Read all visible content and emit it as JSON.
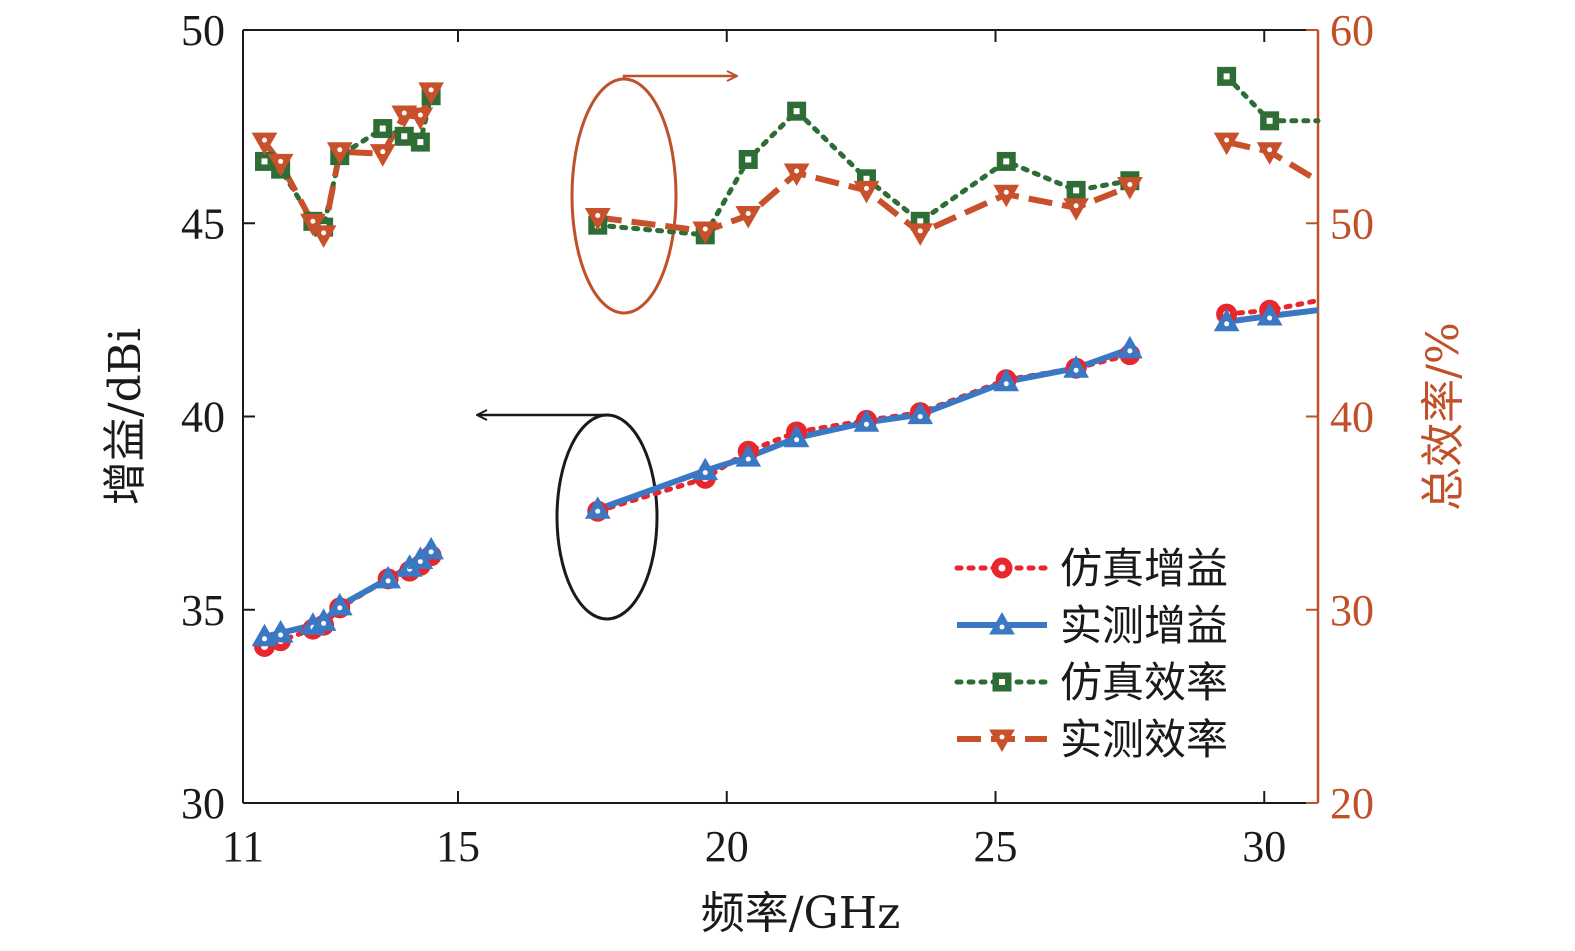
{
  "chart_data": {
    "type": "line",
    "xlabel": "频率/GHz",
    "ylabel_left": "增益/dBi",
    "ylabel_right": "总效率/%",
    "xlim": [
      11,
      31
    ],
    "ylim_left": [
      30,
      50
    ],
    "ylim_right": [
      20,
      60
    ],
    "xticks": [
      11,
      15,
      20,
      25,
      30
    ],
    "yticks_left": [
      30,
      35,
      40,
      45,
      50
    ],
    "yticks_right": [
      20,
      30,
      40,
      50,
      60
    ],
    "grid": false,
    "legend_position": "bottom-right",
    "colors": {
      "axis_left": "#1a1a1a",
      "axis_right": "#c0502a",
      "sim_gain": "#e8262d",
      "meas_gain": "#3a78c4",
      "sim_eff": "#2e6e36",
      "meas_eff": "#c8502a",
      "ellipse_right": "#c0502a",
      "ellipse_left": "#1a1a1a"
    },
    "series": [
      {
        "name": "仿真增益",
        "axis": "left",
        "segments": [
          [
            [
              11.4,
              34.05
            ],
            [
              11.7,
              34.2
            ],
            [
              12.3,
              34.5
            ],
            [
              12.5,
              34.6
            ],
            [
              12.8,
              35.05
            ],
            [
              13.7,
              35.8
            ],
            [
              14.1,
              36.0
            ],
            [
              14.3,
              36.15
            ],
            [
              14.5,
              36.4
            ]
          ],
          [
            [
              17.6,
              37.55
            ],
            [
              19.6,
              38.4
            ],
            [
              20.4,
              39.1
            ],
            [
              21.3,
              39.6
            ],
            [
              22.6,
              39.9
            ],
            [
              23.6,
              40.1
            ],
            [
              25.2,
              40.95
            ],
            [
              26.5,
              41.25
            ],
            [
              27.5,
              41.6
            ]
          ],
          [
            [
              29.3,
              42.65
            ],
            [
              30.1,
              42.75
            ],
            [
              31.0,
              43.0
            ]
          ]
        ]
      },
      {
        "name": "实测增益",
        "axis": "left",
        "segments": [
          [
            [
              11.4,
              34.3
            ],
            [
              11.7,
              34.4
            ],
            [
              12.3,
              34.6
            ],
            [
              12.5,
              34.7
            ],
            [
              12.8,
              35.1
            ],
            [
              13.7,
              35.8
            ],
            [
              14.1,
              36.1
            ],
            [
              14.3,
              36.3
            ],
            [
              14.5,
              36.55
            ]
          ],
          [
            [
              17.6,
              37.6
            ],
            [
              19.6,
              38.6
            ],
            [
              20.4,
              38.95
            ],
            [
              21.3,
              39.45
            ],
            [
              22.6,
              39.85
            ],
            [
              23.6,
              40.05
            ],
            [
              25.2,
              40.9
            ],
            [
              26.5,
              41.25
            ],
            [
              27.5,
              41.75
            ]
          ],
          [
            [
              29.3,
              42.45
            ],
            [
              30.1,
              42.6
            ],
            [
              31.0,
              42.75
            ]
          ]
        ]
      },
      {
        "name": "仿真效率",
        "axis": "right",
        "segments": [
          [
            [
              11.4,
              53.2
            ],
            [
              11.7,
              52.8
            ],
            [
              12.3,
              50.1
            ],
            [
              12.5,
              49.8
            ],
            [
              12.8,
              53.5
            ],
            [
              13.6,
              54.9
            ],
            [
              14.0,
              54.5
            ],
            [
              14.3,
              54.2
            ],
            [
              14.5,
              56.6
            ]
          ],
          [
            [
              17.6,
              49.9
            ],
            [
              19.6,
              49.4
            ],
            [
              20.4,
              53.3
            ],
            [
              21.3,
              55.8
            ],
            [
              22.6,
              52.3
            ],
            [
              23.6,
              50.1
            ],
            [
              25.2,
              53.2
            ],
            [
              26.5,
              51.7
            ],
            [
              27.5,
              52.2
            ]
          ],
          [
            [
              29.3,
              57.6
            ],
            [
              30.1,
              55.3
            ],
            [
              31.0,
              55.3
            ]
          ]
        ]
      },
      {
        "name": "实测效率",
        "axis": "right",
        "segments": [
          [
            [
              11.4,
              54.2
            ],
            [
              11.7,
              53.1
            ],
            [
              12.3,
              50.0
            ],
            [
              12.5,
              49.4
            ],
            [
              12.8,
              53.7
            ],
            [
              13.6,
              53.6
            ],
            [
              14.0,
              55.6
            ],
            [
              14.3,
              55.5
            ],
            [
              14.5,
              56.8
            ]
          ],
          [
            [
              17.6,
              50.3
            ],
            [
              19.6,
              49.6
            ],
            [
              20.4,
              50.4
            ],
            [
              21.3,
              52.6
            ],
            [
              22.6,
              51.7
            ],
            [
              23.6,
              49.5
            ],
            [
              25.2,
              51.5
            ],
            [
              26.5,
              50.8
            ],
            [
              27.5,
              51.9
            ]
          ],
          [
            [
              29.3,
              54.2
            ],
            [
              30.1,
              53.7
            ],
            [
              31.0,
              52.2
            ]
          ]
        ]
      }
    ]
  }
}
